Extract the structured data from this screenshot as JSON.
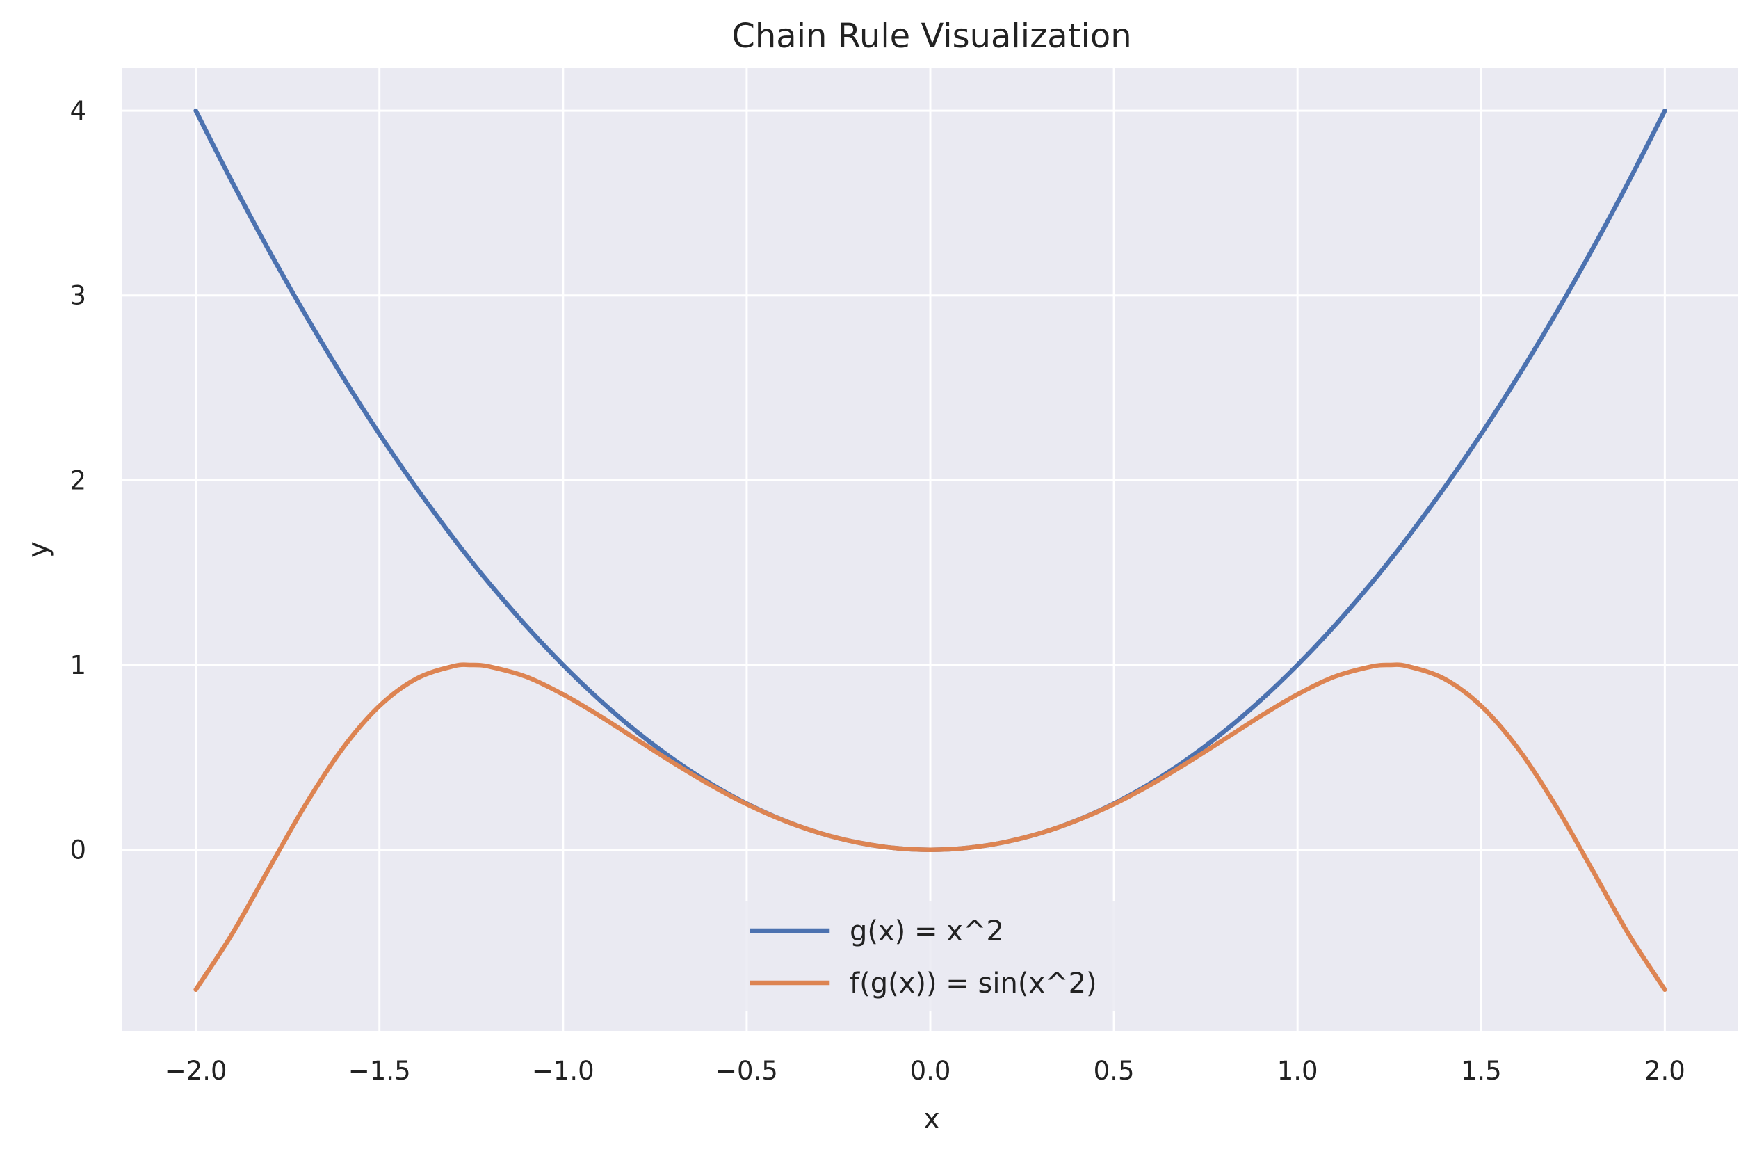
{
  "chart_data": {
    "type": "line",
    "title": "Chain Rule Visualization",
    "xlabel": "x",
    "ylabel": "y",
    "xlim": [
      -2.2,
      2.2
    ],
    "ylim": [
      -0.98,
      4.23
    ],
    "grid": true,
    "legend_position": "lower center",
    "x_ticks": [
      -2.0,
      -1.5,
      -1.0,
      -0.5,
      0.0,
      0.5,
      1.0,
      1.5,
      2.0
    ],
    "x_tick_labels": [
      "−2.0",
      "−1.5",
      "−1.0",
      "−0.5",
      "0.0",
      "0.5",
      "1.0",
      "1.5",
      "2.0"
    ],
    "y_ticks": [
      0,
      1,
      2,
      3,
      4
    ],
    "y_tick_labels": [
      "0",
      "1",
      "2",
      "3",
      "4"
    ],
    "x": [
      -2.0,
      -1.9,
      -1.8,
      -1.7,
      -1.6,
      -1.5,
      -1.4,
      -1.3,
      -1.25,
      -1.2,
      -1.1,
      -1.0,
      -0.9,
      -0.8,
      -0.7,
      -0.6,
      -0.5,
      -0.4,
      -0.3,
      -0.2,
      -0.1,
      0.0,
      0.1,
      0.2,
      0.3,
      0.4,
      0.5,
      0.6,
      0.7,
      0.8,
      0.9,
      1.0,
      1.1,
      1.2,
      1.25,
      1.3,
      1.4,
      1.5,
      1.6,
      1.7,
      1.8,
      1.9,
      2.0
    ],
    "series": [
      {
        "name": "g(x) = x^2",
        "color": "#4c72b0",
        "values": [
          4.0,
          3.61,
          3.24,
          2.89,
          2.56,
          2.25,
          1.96,
          1.69,
          1.5625,
          1.44,
          1.21,
          1.0,
          0.81,
          0.64,
          0.49,
          0.36,
          0.25,
          0.16,
          0.09,
          0.04,
          0.01,
          0.0,
          0.01,
          0.04,
          0.09,
          0.16,
          0.25,
          0.36,
          0.49,
          0.64,
          0.81,
          1.0,
          1.21,
          1.44,
          1.5625,
          1.69,
          1.96,
          2.25,
          2.56,
          2.89,
          3.24,
          3.61,
          4.0
        ]
      },
      {
        "name": "f(g(x)) = sin(x^2)",
        "color": "#dd8452",
        "values": [
          -0.757,
          -0.452,
          -0.099,
          0.248,
          0.549,
          0.778,
          0.925,
          0.993,
          1.0,
          0.991,
          0.936,
          0.841,
          0.724,
          0.597,
          0.471,
          0.352,
          0.247,
          0.159,
          0.09,
          0.04,
          0.01,
          0.0,
          0.01,
          0.04,
          0.09,
          0.159,
          0.247,
          0.352,
          0.471,
          0.597,
          0.724,
          0.841,
          0.936,
          0.991,
          1.0,
          0.993,
          0.925,
          0.778,
          0.549,
          0.248,
          -0.099,
          -0.452,
          -0.757
        ]
      }
    ]
  }
}
